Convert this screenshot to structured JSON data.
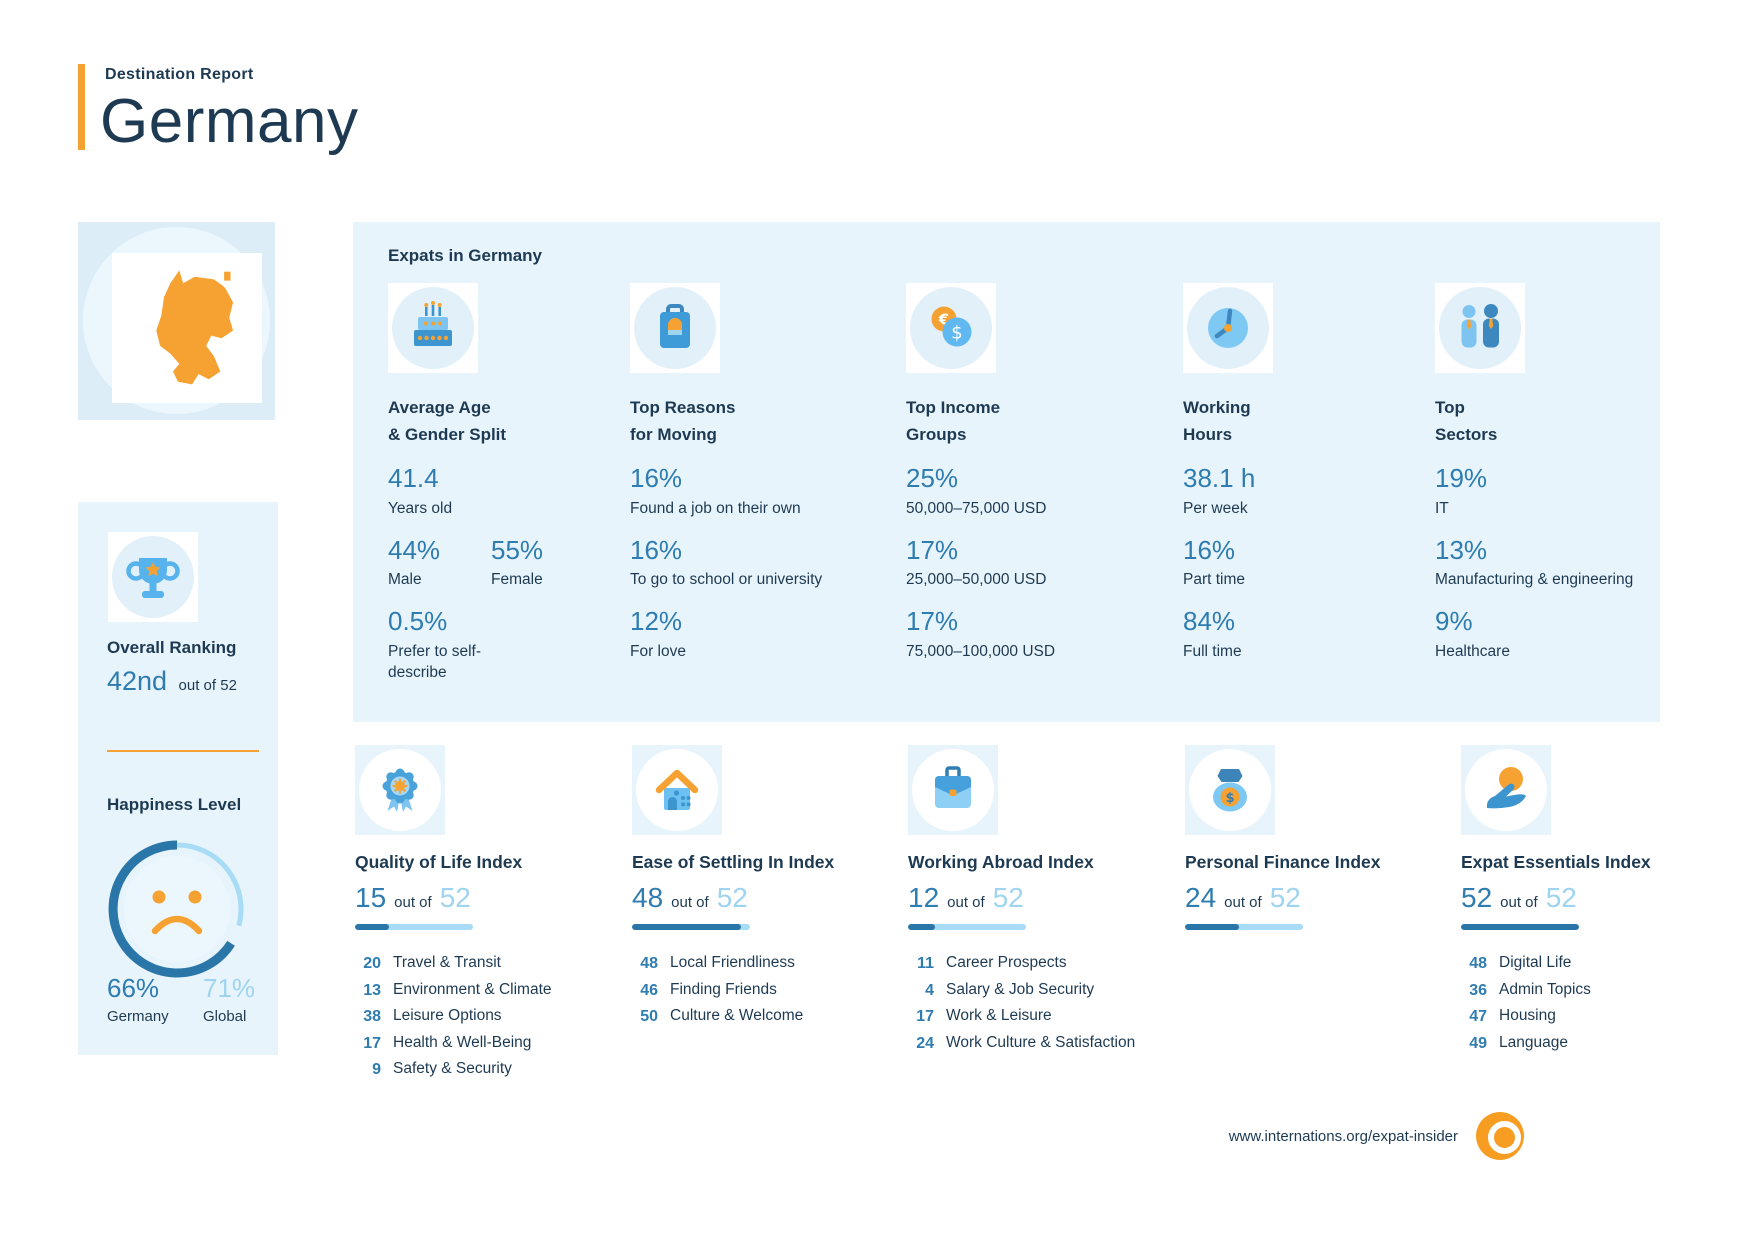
{
  "header": {
    "kicker": "Destination Report",
    "title": "Germany"
  },
  "sidebar": {
    "map": {
      "icon": "germany-map-icon"
    },
    "ranking": {
      "icon": "trophy-icon",
      "title": "Overall Ranking",
      "value": "42nd",
      "suffix": "out of 52"
    },
    "happiness": {
      "title": "Happiness Level",
      "gauge_icon": "sad-face-gauge",
      "local": {
        "value": "66%",
        "label": "Germany"
      },
      "global": {
        "value": "71%",
        "label": "Global"
      }
    }
  },
  "panel": {
    "title": "Expats in Germany",
    "columns": [
      {
        "icon": "birthday-cake-icon",
        "title_lines": [
          "Average Age",
          "& Gender Split"
        ],
        "stats": [
          {
            "value": "41.4",
            "label": "Years old"
          },
          {
            "value": "44%",
            "label": "Male"
          },
          {
            "value": "55%",
            "label": "Female"
          },
          {
            "value": "0.5%",
            "label": "Prefer to self-describe"
          }
        ]
      },
      {
        "icon": "suitcase-icon",
        "title_lines": [
          "Top Reasons",
          "for Moving"
        ],
        "stats": [
          {
            "value": "16%",
            "label": "Found a job on their own"
          },
          {
            "value": "16%",
            "label": "To go to school or university"
          },
          {
            "value": "12%",
            "label": "For love"
          }
        ]
      },
      {
        "icon": "euro-dollar-coins-icon",
        "title_lines": [
          "Top Income",
          "Groups"
        ],
        "stats": [
          {
            "value": "25%",
            "label": "50,000–75,000 USD"
          },
          {
            "value": "17%",
            "label": "25,000–50,000 USD"
          },
          {
            "value": "17%",
            "label": "75,000–100,000 USD"
          }
        ]
      },
      {
        "icon": "clock-icon",
        "title_lines": [
          "Working",
          "Hours"
        ],
        "stats": [
          {
            "value": "38.1 h",
            "label": "Per week"
          },
          {
            "value": "16%",
            "label": "Part time"
          },
          {
            "value": "84%",
            "label": "Full time"
          }
        ]
      },
      {
        "icon": "people-icon",
        "title_lines": [
          "Top",
          "Sectors"
        ],
        "stats": [
          {
            "value": "19%",
            "label": "IT"
          },
          {
            "value": "13%",
            "label": "Manufacturing & engineering"
          },
          {
            "value": "9%",
            "label": "Healthcare"
          }
        ]
      }
    ]
  },
  "indices": [
    {
      "icon": "medal-icon",
      "title": "Quality of Life Index",
      "rank": "15",
      "of_label": "out of",
      "total": "52",
      "bar_pct": 29,
      "items": [
        {
          "rank": "20",
          "label": "Travel & Transit"
        },
        {
          "rank": "13",
          "label": "Environment & Climate"
        },
        {
          "rank": "38",
          "label": "Leisure Options"
        },
        {
          "rank": "17",
          "label": "Health & Well-Being"
        },
        {
          "rank": "9",
          "label": "Safety & Security"
        }
      ]
    },
    {
      "icon": "house-icon",
      "title": "Ease of Settling In Index",
      "rank": "48",
      "of_label": "out of",
      "total": "52",
      "bar_pct": 92,
      "items": [
        {
          "rank": "48",
          "label": "Local Friendliness"
        },
        {
          "rank": "46",
          "label": "Finding Friends"
        },
        {
          "rank": "50",
          "label": "Culture & Welcome"
        }
      ]
    },
    {
      "icon": "briefcase-icon",
      "title": "Working Abroad Index",
      "rank": "12",
      "of_label": "out of",
      "total": "52",
      "bar_pct": 23,
      "items": [
        {
          "rank": "11",
          "label": "Career Prospects"
        },
        {
          "rank": "4",
          "label": "Salary & Job Security"
        },
        {
          "rank": "17",
          "label": "Work & Leisure"
        },
        {
          "rank": "24",
          "label": "Work Culture & Satisfaction"
        }
      ]
    },
    {
      "icon": "money-bag-icon",
      "title": "Personal Finance Index",
      "rank": "24",
      "of_label": "out of",
      "total": "52",
      "bar_pct": 46,
      "items": []
    },
    {
      "icon": "hand-coin-icon",
      "title": "Expat Essentials Index",
      "rank": "52",
      "of_label": "out of",
      "total": "52",
      "bar_pct": 100,
      "items": [
        {
          "rank": "48",
          "label": "Digital Life"
        },
        {
          "rank": "36",
          "label": "Admin Topics"
        },
        {
          "rank": "47",
          "label": "Housing"
        },
        {
          "rank": "49",
          "label": "Language"
        }
      ]
    }
  ],
  "footer": {
    "url": "www.internations.org/expat-insider",
    "logo": "internations-logo"
  },
  "colors": {
    "navy": "#1e3a52",
    "accent_orange": "#f6a232",
    "stat_blue": "#2e7cb0",
    "light_blue": "#9fd4f0",
    "panel_bg": "#e7f4fc",
    "bar_dark": "#2b76a8",
    "bar_light": "#a8dbf5"
  }
}
